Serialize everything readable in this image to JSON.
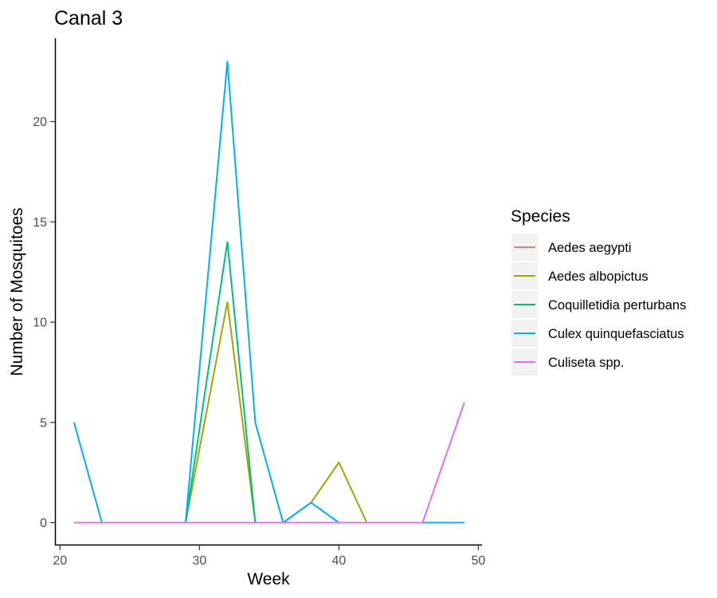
{
  "chart_data": {
    "type": "line",
    "title": "Canal 3",
    "xlabel": "Week",
    "ylabel": "Number of Mosquitoes",
    "xlim": [
      20,
      50
    ],
    "ylim": [
      0,
      23
    ],
    "xticks": [
      20,
      30,
      40,
      50
    ],
    "yticks": [
      0,
      5,
      10,
      15,
      20
    ],
    "grid": false,
    "legend": {
      "title": "Species",
      "position": "right"
    },
    "x": [
      21,
      23,
      25,
      27,
      29,
      32,
      34,
      36,
      38,
      40,
      42,
      44,
      46,
      49
    ],
    "series": [
      {
        "name": "Aedes aegypti",
        "color": "#F8766D",
        "values": [
          0,
          0,
          0,
          0,
          0,
          0,
          0,
          0,
          0,
          0,
          0,
          0,
          0,
          0
        ]
      },
      {
        "name": "Aedes albopictus",
        "color": "#A3A500",
        "values": [
          0,
          0,
          0,
          0,
          0,
          11,
          0,
          0,
          1,
          3,
          0,
          0,
          0,
          0
        ]
      },
      {
        "name": "Coquilletidia perturbans",
        "color": "#00BF7D",
        "values": [
          0,
          0,
          0,
          0,
          0,
          14,
          0,
          0,
          0,
          0,
          0,
          0,
          0,
          0
        ]
      },
      {
        "name": "Culex quinquefasciatus",
        "color": "#00B0F6",
        "values": [
          5,
          0,
          0,
          0,
          0,
          23,
          5,
          0,
          1,
          0,
          0,
          0,
          0,
          0
        ]
      },
      {
        "name": "Culiseta spp.",
        "color": "#E76BF3",
        "values": [
          0,
          0,
          0,
          0,
          0,
          0,
          0,
          0,
          0,
          0,
          0,
          0,
          0,
          6
        ]
      }
    ]
  }
}
